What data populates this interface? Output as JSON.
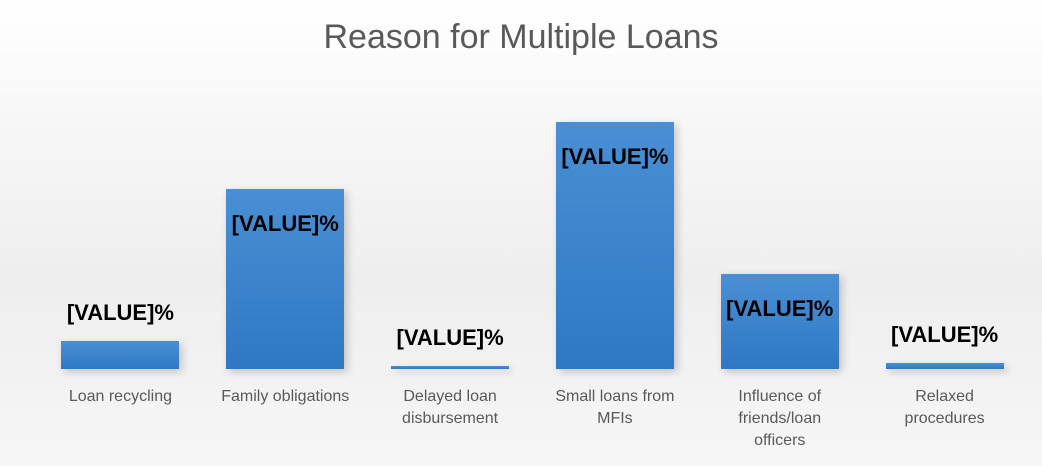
{
  "chart_data": {
    "type": "bar",
    "title": "Reason for Multiple Loans",
    "categories": [
      "Loan recycling",
      "Family obligations",
      "Delayed loan disbursement",
      "Small loans from MFIs",
      "Influence of friends/loan officers",
      "Relaxed procedures"
    ],
    "values": [
      5,
      32,
      0.5,
      44,
      17,
      1
    ],
    "value_labels": [
      "[VALUE]%",
      "[VALUE]%",
      "[VALUE]%",
      "[VALUE]%",
      "[VALUE]%",
      "[VALUE]%"
    ],
    "color": "#4a8fd4"
  }
}
